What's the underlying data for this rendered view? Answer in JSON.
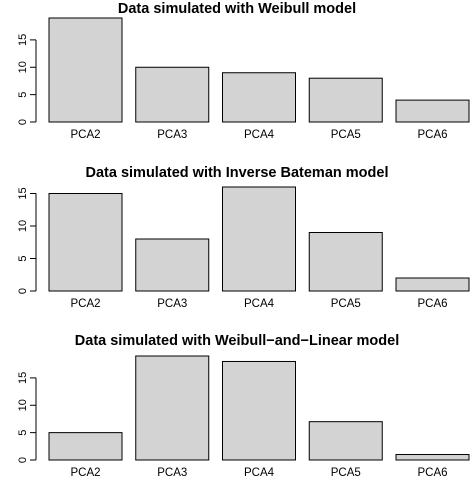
{
  "chart_data": [
    {
      "type": "bar",
      "title": "Data simulated with Weibull model",
      "categories": [
        "PCA2",
        "PCA3",
        "PCA4",
        "PCA5",
        "PCA6"
      ],
      "values": [
        19,
        10,
        9,
        8,
        4
      ],
      "ylim": [
        0,
        19
      ],
      "yticks": [
        0,
        5,
        10,
        15
      ],
      "ytick_labels": [
        "0",
        "5",
        "10",
        "15"
      ],
      "bar_color": "#d3d3d3"
    },
    {
      "type": "bar",
      "title": "Data simulated with Inverse Bateman model",
      "categories": [
        "PCA2",
        "PCA3",
        "PCA4",
        "PCA5",
        "PCA6"
      ],
      "values": [
        15,
        8,
        16,
        9,
        2
      ],
      "ylim": [
        0,
        16
      ],
      "yticks": [
        0,
        5,
        10,
        15
      ],
      "ytick_labels": [
        "0",
        "5",
        "10",
        "15"
      ],
      "bar_color": "#d3d3d3"
    },
    {
      "type": "bar",
      "title": "Data simulated with Weibull−and−Linear model",
      "categories": [
        "PCA2",
        "PCA3",
        "PCA4",
        "PCA5",
        "PCA6"
      ],
      "values": [
        5,
        19,
        18,
        7,
        1
      ],
      "ylim": [
        0,
        19
      ],
      "yticks": [
        0,
        5,
        10,
        15
      ],
      "ytick_labels": [
        "0",
        "5",
        "10",
        "15"
      ],
      "bar_color": "#d3d3d3"
    }
  ]
}
